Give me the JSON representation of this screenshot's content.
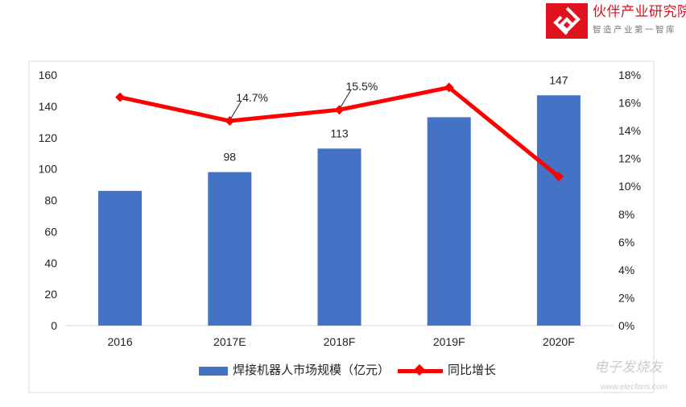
{
  "logo": {
    "title": "伙伴产业研究院",
    "subtitle": "智造产业第一智库"
  },
  "watermark": {
    "title": "电子发烧友",
    "url": "www.elecfans.com"
  },
  "chart_data": {
    "type": "bar+line",
    "categories": [
      "2016",
      "2017E",
      "2018F",
      "2019F",
      "2020F"
    ],
    "series": [
      {
        "name": "焊接机器人市场规模（亿元）",
        "type": "bar",
        "axis": "left",
        "color": "#4472c4",
        "values": [
          86,
          98,
          113,
          133,
          147
        ],
        "labels": [
          null,
          "98",
          "113",
          null,
          "147"
        ]
      },
      {
        "name": "同比增长",
        "type": "line",
        "axis": "right",
        "color": "#ff0000",
        "values": [
          16.4,
          14.7,
          15.5,
          17.1,
          10.7
        ],
        "labels": [
          null,
          "14.7%",
          "15.5%",
          null,
          null
        ]
      }
    ],
    "yleft": {
      "min": 0,
      "max": 160,
      "ticks": [
        "0",
        "20",
        "40",
        "60",
        "80",
        "100",
        "120",
        "140",
        "160"
      ]
    },
    "yright": {
      "min": 0,
      "max": 18,
      "ticks": [
        "0%",
        "2%",
        "4%",
        "6%",
        "8%",
        "10%",
        "12%",
        "14%",
        "16%",
        "18%"
      ]
    },
    "grid": false,
    "legend": "bottom"
  }
}
